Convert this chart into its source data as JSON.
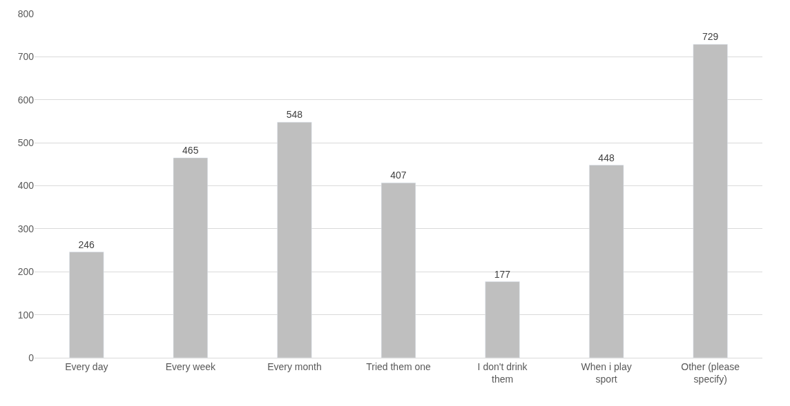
{
  "chart_data": {
    "type": "bar",
    "categories": [
      "Every day",
      "Every week",
      "Every month",
      "Tried them one",
      "I don't drink them",
      "When i play sport",
      "Other (please specify)"
    ],
    "values": [
      246,
      465,
      548,
      407,
      177,
      448,
      729
    ],
    "color": "#bfbfbf",
    "ylim": [
      0,
      800
    ],
    "yticks": [
      0,
      100,
      200,
      300,
      400,
      500,
      600,
      700,
      800
    ],
    "grid": "y",
    "data_labels": true
  }
}
